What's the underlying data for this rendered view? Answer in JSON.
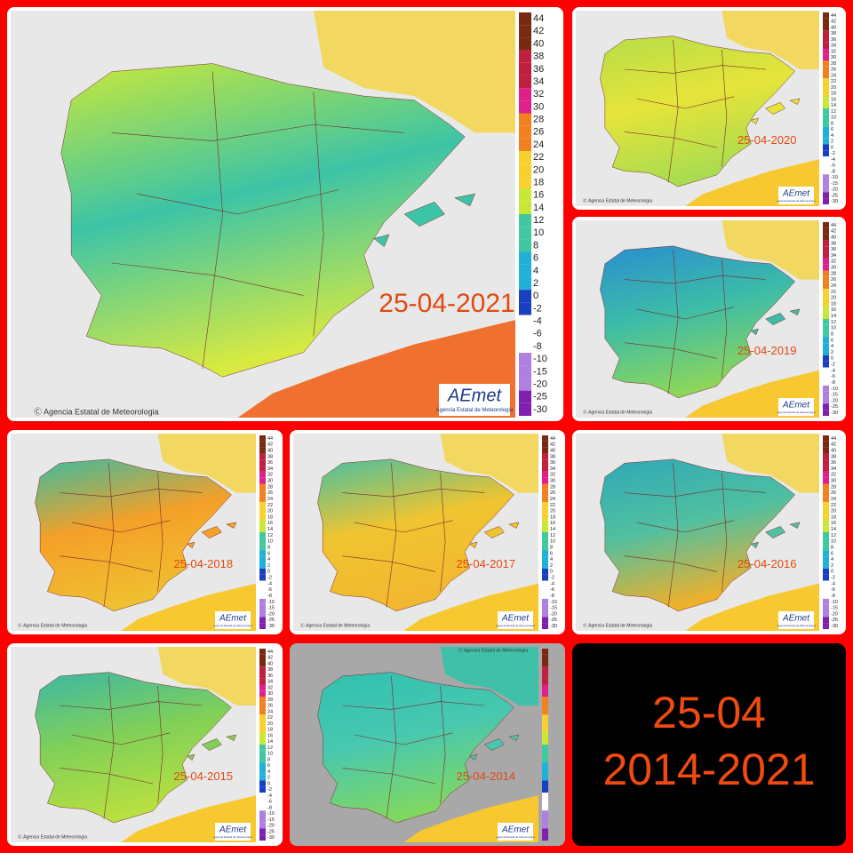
{
  "panels": [
    {
      "date": "25-04-2021"
    },
    {
      "date": "25-04-2020"
    },
    {
      "date": "25-04-2019"
    },
    {
      "date": "25-04-2018"
    },
    {
      "date": "25-04-2017"
    },
    {
      "date": "25-04-2016"
    },
    {
      "date": "25-04-2015"
    },
    {
      "date": "25-04-2014"
    }
  ],
  "legend": [
    44,
    42,
    40,
    38,
    36,
    34,
    32,
    30,
    28,
    26,
    24,
    22,
    20,
    18,
    16,
    14,
    12,
    10,
    8,
    6,
    4,
    2,
    0,
    -2,
    -4,
    -6,
    -8,
    -10,
    -15,
    -20,
    -25,
    -30
  ],
  "copyright": "Ⓒ Agencia Estatal de Meteorologia",
  "logo": {
    "name": "AEmet",
    "subtitle": "Agencia Estatal de Meteorología"
  },
  "summary": {
    "day": "25-04",
    "years": "2014-2021"
  }
}
